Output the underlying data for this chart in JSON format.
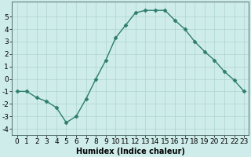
{
  "x": [
    0,
    1,
    2,
    3,
    4,
    5,
    6,
    7,
    8,
    9,
    10,
    11,
    12,
    13,
    14,
    15,
    16,
    17,
    18,
    19,
    20,
    21,
    22,
    23
  ],
  "y": [
    -1,
    -1,
    -1.5,
    -1.8,
    -2.3,
    -3.5,
    -3.0,
    -1.6,
    0.0,
    1.5,
    3.3,
    4.3,
    5.3,
    5.5,
    5.5,
    5.5,
    4.7,
    4.0,
    3.0,
    2.2,
    1.5,
    0.6,
    -0.1,
    -1.0
  ],
  "line_color": "#2e7d6e",
  "marker": "D",
  "markersize": 2.5,
  "linewidth": 1.0,
  "xlabel": "Humidex (Indice chaleur)",
  "xlim": [
    -0.5,
    23.5
  ],
  "ylim": [
    -4.5,
    6.2
  ],
  "bg_color": "#ceecea",
  "grid_color": "#aed4d0",
  "xtick_labels": [
    "0",
    "1",
    "2",
    "3",
    "4",
    "5",
    "6",
    "7",
    "8",
    "9",
    "10",
    "11",
    "12",
    "13",
    "14",
    "15",
    "16",
    "17",
    "18",
    "19",
    "20",
    "21",
    "22",
    "23"
  ],
  "yticks": [
    -4,
    -3,
    -2,
    -1,
    0,
    1,
    2,
    3,
    4,
    5
  ],
  "label_fontsize": 7,
  "tick_fontsize": 6.5
}
